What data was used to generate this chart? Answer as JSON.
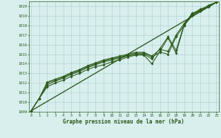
{
  "title": "Graphe pression niveau de la mer (hPa)",
  "bg_color": "#d8efee",
  "grid_color": "#a8cccc",
  "line_color": "#2d5a1b",
  "xlim": [
    -0.3,
    23.3
  ],
  "ylim": [
    1009,
    1020.5
  ],
  "ytick_vals": [
    1009,
    1010,
    1011,
    1012,
    1013,
    1014,
    1015,
    1016,
    1017,
    1018,
    1019,
    1020
  ],
  "xtick_vals": [
    0,
    1,
    2,
    3,
    4,
    5,
    6,
    7,
    8,
    9,
    10,
    11,
    12,
    13,
    14,
    15,
    16,
    17,
    18,
    19,
    20,
    21,
    22,
    23
  ],
  "series": [
    {
      "x": [
        0,
        1,
        2,
        3,
        4,
        5,
        6,
        7,
        8,
        9,
        10,
        11,
        12,
        13,
        14,
        15,
        16,
        17,
        18,
        19,
        20,
        21,
        22,
        23
      ],
      "y": [
        1009.1,
        1010.4,
        1011.6,
        1012.0,
        1012.3,
        1012.7,
        1013.0,
        1013.4,
        1013.7,
        1013.9,
        1014.2,
        1014.4,
        1014.7,
        1014.9,
        1014.9,
        1014.0,
        1015.3,
        1016.7,
        1015.1,
        1018.0,
        1019.3,
        1019.5,
        1020.1,
        1020.4
      ],
      "has_marker": true
    },
    {
      "x": [
        0,
        1,
        2,
        3,
        4,
        5,
        6,
        7,
        8,
        9,
        10,
        11,
        12,
        13,
        14,
        15,
        16,
        17,
        18,
        19,
        20,
        21,
        22,
        23
      ],
      "y": [
        1009.1,
        1010.4,
        1011.8,
        1012.2,
        1012.5,
        1012.9,
        1013.2,
        1013.6,
        1013.9,
        1014.2,
        1014.4,
        1014.6,
        1014.8,
        1015.0,
        1015.0,
        1014.5,
        1015.6,
        1016.8,
        1015.4,
        1018.1,
        1019.1,
        1019.6,
        1020.0,
        1020.4
      ],
      "has_marker": true
    },
    {
      "x": [
        0,
        1,
        2,
        3,
        4,
        5,
        6,
        7,
        8,
        9,
        10,
        11,
        12,
        13,
        14,
        15,
        16,
        17,
        18,
        19,
        20,
        21,
        22,
        23
      ],
      "y": [
        1009.1,
        1010.4,
        1012.0,
        1012.3,
        1012.6,
        1013.0,
        1013.3,
        1013.7,
        1014.0,
        1014.3,
        1014.5,
        1014.7,
        1014.9,
        1015.1,
        1015.1,
        1014.7,
        1015.2,
        1015.0,
        1016.8,
        1018.0,
        1019.0,
        1019.5,
        1019.9,
        1020.4
      ],
      "has_marker": true
    },
    {
      "x": [
        0,
        1,
        2,
        3,
        4,
        5,
        6,
        7,
        8,
        9,
        10,
        11,
        12,
        13,
        14,
        15,
        16,
        17,
        18,
        19,
        20,
        21,
        22,
        23
      ],
      "y": [
        1009.1,
        1010.4,
        1012.1,
        1012.4,
        1012.7,
        1013.1,
        1013.4,
        1013.8,
        1014.1,
        1014.4,
        1014.6,
        1014.8,
        1015.0,
        1015.2,
        1015.2,
        1014.8,
        1015.5,
        1015.3,
        1017.0,
        1018.2,
        1019.2,
        1019.7,
        1020.0,
        1020.4
      ],
      "has_marker": true
    },
    {
      "x": [
        0,
        23
      ],
      "y": [
        1009.1,
        1020.4
      ],
      "has_marker": false
    }
  ],
  "marker": "D",
  "marker_size": 1.8,
  "linewidth": 0.8,
  "trend_linewidth": 1.0
}
